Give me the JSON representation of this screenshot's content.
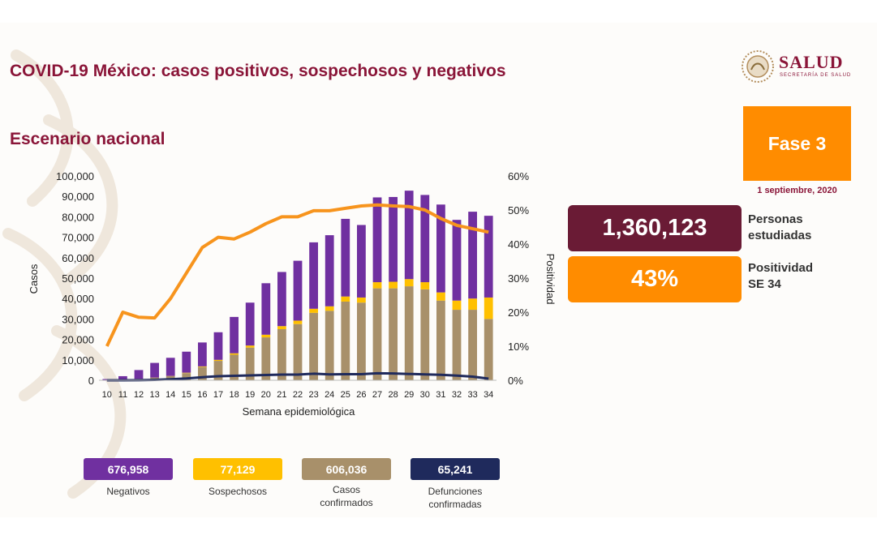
{
  "header": {
    "title": "COVID-19 México: casos positivos, sospechosos y negativos",
    "subtitle": "Escenario nacional"
  },
  "logo": {
    "text": "SALUD",
    "subtext": "SECRETARÍA DE SALUD"
  },
  "phase": {
    "label": "Fase 3",
    "date": "1 septiembre, 2020"
  },
  "stats": [
    {
      "value": "1,360,123",
      "label_line1": "Personas",
      "label_line2": "estudiadas"
    },
    {
      "value": "43%",
      "label_line1": "Positividad",
      "label_line2": "SE 34"
    }
  ],
  "colors": {
    "negativos": "#7030a0",
    "sospechosos": "#ffc000",
    "confirmados": "#a8906a",
    "defunciones": "#1f2a5c",
    "positividad": "#f7941d",
    "title": "#8a1538"
  },
  "chart_data": {
    "type": "bar",
    "stacked": true,
    "xlabel": "Semana epidemiológica",
    "ylabel": "Casos",
    "y2label": "Positividad",
    "ylim": [
      0,
      100000
    ],
    "y2lim": [
      0,
      60
    ],
    "yticks": [
      "0",
      "10,000",
      "20,000",
      "30,000",
      "40,000",
      "50,000",
      "60,000",
      "70,000",
      "80,000",
      "90,000",
      "100,000"
    ],
    "y2ticks": [
      "0%",
      "10%",
      "20%",
      "30%",
      "40%",
      "50%",
      "60%"
    ],
    "grid": false,
    "categories": [
      "10",
      "11",
      "12",
      "13",
      "14",
      "15",
      "16",
      "17",
      "18",
      "19",
      "20",
      "21",
      "22",
      "23",
      "24",
      "25",
      "26",
      "27",
      "28",
      "29",
      "30",
      "31",
      "32",
      "33",
      "34"
    ],
    "series": [
      {
        "name": "Casos confirmados",
        "kind": "bar",
        "values": [
          100,
          300,
          700,
          1200,
          2000,
          3500,
          6500,
          9500,
          12500,
          16000,
          21000,
          25000,
          27500,
          33000,
          34000,
          38500,
          38000,
          45000,
          45000,
          46000,
          44500,
          39000,
          34500,
          34500,
          30000
        ]
      },
      {
        "name": "Sospechosos",
        "kind": "bar",
        "values": [
          0,
          0,
          0,
          100,
          100,
          200,
          300,
          500,
          700,
          1000,
          1300,
          1500,
          1700,
          2000,
          2200,
          2500,
          2500,
          3000,
          3200,
          3500,
          3500,
          4000,
          4500,
          5500,
          10500
        ]
      },
      {
        "name": "Negativos",
        "kind": "bar",
        "values": [
          500,
          1700,
          4300,
          7200,
          8900,
          10300,
          11700,
          13500,
          17800,
          21000,
          25200,
          26500,
          29300,
          32500,
          34800,
          38000,
          35500,
          41500,
          41500,
          43300,
          42700,
          43000,
          39500,
          42500,
          40000
        ]
      },
      {
        "name": "Defunciones confirmadas",
        "kind": "line",
        "axis": "left",
        "values": [
          0,
          0,
          50,
          200,
          500,
          900,
          1500,
          2000,
          2200,
          2400,
          2600,
          2800,
          2800,
          3200,
          2900,
          3000,
          3000,
          3400,
          3300,
          3100,
          2900,
          2700,
          2300,
          1800,
          800
        ]
      },
      {
        "name": "Positividad",
        "kind": "line",
        "axis": "right",
        "values": [
          10,
          20,
          18.5,
          18.3,
          24,
          31.5,
          39,
          42,
          41.5,
          43.5,
          46,
          48,
          48,
          49.8,
          49.8,
          50.5,
          51.2,
          51.5,
          51.2,
          51,
          50,
          47.5,
          45.5,
          44.5,
          43.5
        ]
      }
    ]
  },
  "legend": [
    {
      "value": "676,958",
      "label_line1": "Negativos",
      "label_line2": ""
    },
    {
      "value": "77,129",
      "label_line1": "Sospechosos",
      "label_line2": ""
    },
    {
      "value": "606,036",
      "label_line1": "Casos",
      "label_line2": "confirmados"
    },
    {
      "value": "65,241",
      "label_line1": "Defunciones",
      "label_line2": "confirmadas"
    }
  ]
}
